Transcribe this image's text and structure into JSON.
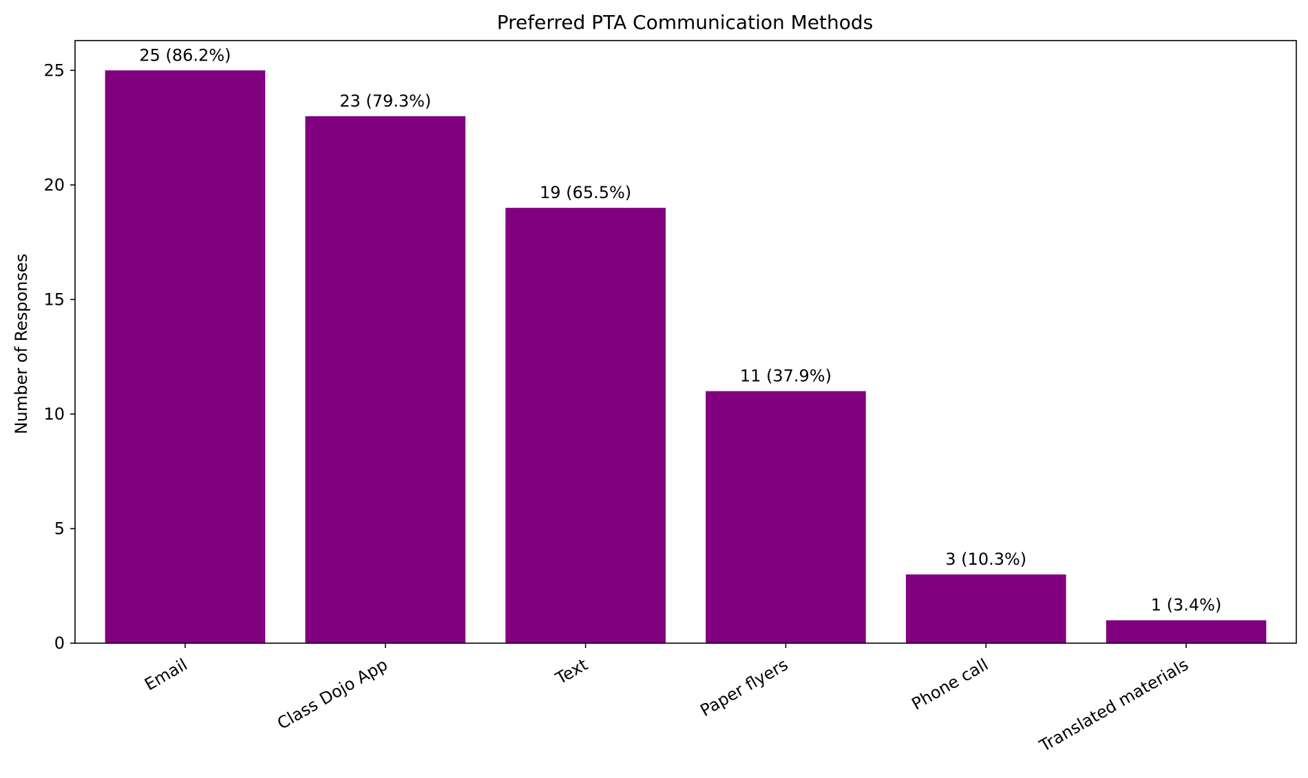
{
  "chart_data": {
    "type": "bar",
    "title": "Preferred PTA Communication Methods",
    "xlabel": "",
    "ylabel": "Number of Responses",
    "categories": [
      "Email",
      "Class Dojo App",
      "Text",
      "Paper flyers",
      "Phone call",
      "Translated materials"
    ],
    "values": [
      25,
      23,
      19,
      11,
      3,
      1
    ],
    "data_labels": [
      "25 (86.2%)",
      "23 (79.3%)",
      "19 (65.5%)",
      "11 (37.9%)",
      "3 (10.3%)",
      "1 (3.4%)"
    ],
    "yticks": [
      0,
      5,
      10,
      15,
      20,
      25
    ],
    "ylim": [
      0,
      26.3
    ],
    "grid": false,
    "bar_color": "#800080"
  }
}
